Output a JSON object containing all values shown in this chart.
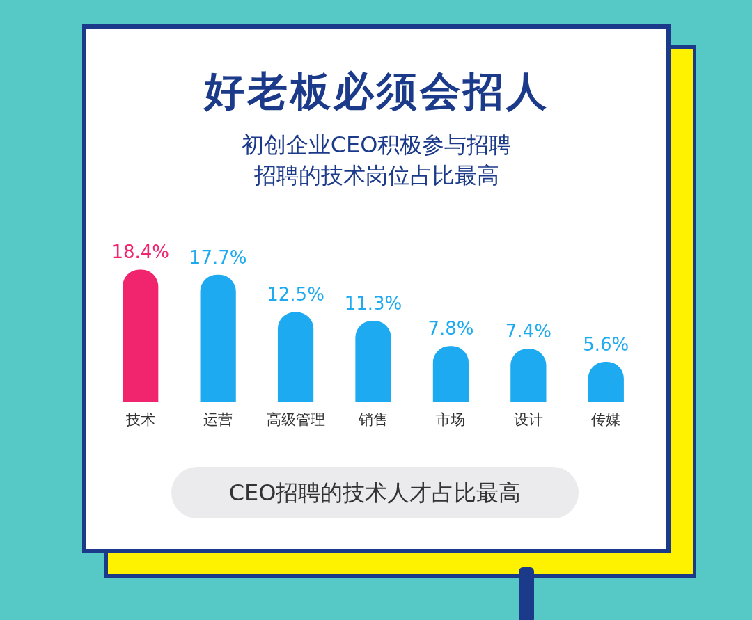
{
  "chart_data": {
    "type": "bar",
    "title": "好老板必须会招人",
    "subtitle": "初创企业CEO积极参与招聘招聘的技术岗位占比最高",
    "categories": [
      "技术",
      "运营",
      "高级管理",
      "销售",
      "市场",
      "设计",
      "传媒"
    ],
    "values": [
      18.4,
      17.7,
      12.5,
      11.3,
      7.8,
      7.4,
      5.6
    ],
    "colors": [
      "#f0256e",
      "#1eaaf0",
      "#1eaaf0",
      "#1eaaf0",
      "#1eaaf0",
      "#1eaaf0",
      "#1eaaf0"
    ],
    "value_labels": [
      "18.4%",
      "17.7%",
      "12.5%",
      "11.3%",
      "7.8%",
      "7.4%",
      "5.6%"
    ],
    "annotations": [
      "CEO招聘的技术人才占比最高"
    ],
    "grid": false,
    "legend": false
  }
}
